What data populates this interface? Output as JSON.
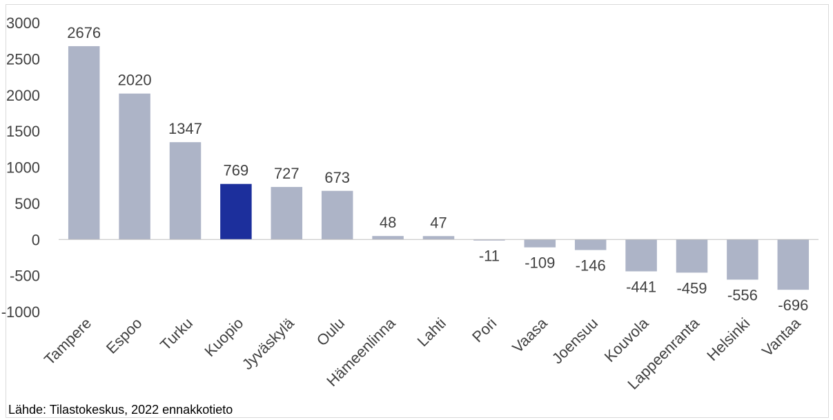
{
  "chart_data": {
    "type": "bar",
    "categories": [
      "Tampere",
      "Espoo",
      "Turku",
      "Kuopio",
      "Jyväskylä",
      "Oulu",
      "Hämeenlinna",
      "Lahti",
      "Pori",
      "Vaasa",
      "Joensuu",
      "Kouvola",
      "Lappeenranta",
      "Helsinki",
      "Vantaa"
    ],
    "values": [
      2676,
      2020,
      1347,
      769,
      727,
      673,
      48,
      47,
      -11,
      -109,
      -146,
      -441,
      -459,
      -556,
      -696
    ],
    "ylim": [
      -1000,
      3000
    ],
    "yticks": [
      3000,
      2500,
      2000,
      1500,
      1000,
      500,
      0,
      -500,
      -1000
    ],
    "grid": false,
    "colors": {
      "default": "#adb4c7",
      "highlight": "#1c2f9c"
    },
    "highlight_category": "Kuopio"
  },
  "source": "Lähde: Tilastokeskus, 2022 ennakkotieto"
}
